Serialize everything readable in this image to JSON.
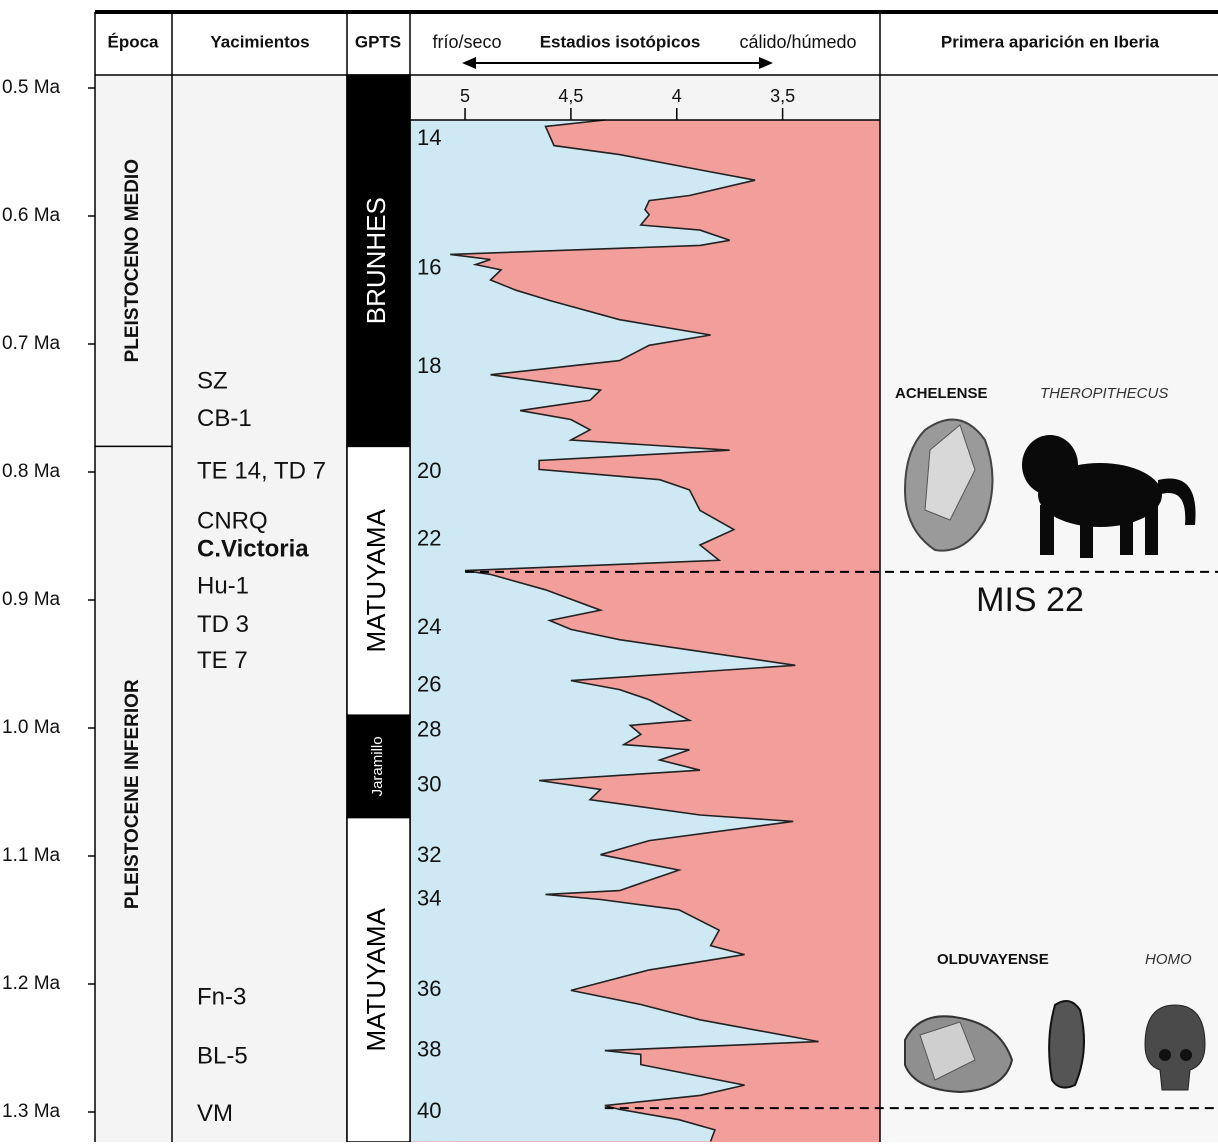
{
  "header": {
    "epoch": "Época",
    "sites": "Yacimientos",
    "gpts": "GPTS",
    "cold": "frío/seco",
    "isotopes": "Estadios isotópicos",
    "warm": "cálido/húmedo",
    "first": "Primera aparición en Iberia"
  },
  "age_axis": {
    "lim": [
      0.5,
      1.3
    ],
    "ticks": [
      {
        "value": 0.5,
        "label": "0.5 Ma"
      },
      {
        "value": 0.6,
        "label": "0.6 Ma"
      },
      {
        "value": 0.7,
        "label": "0.7 Ma"
      },
      {
        "value": 0.8,
        "label": "0.8 Ma"
      },
      {
        "value": 0.9,
        "label": "0.9 Ma"
      },
      {
        "value": 1.0,
        "label": "1.0 Ma"
      },
      {
        "value": 1.1,
        "label": "1.1 Ma"
      },
      {
        "value": 1.2,
        "label": "1.2 Ma"
      },
      {
        "value": 1.3,
        "label": "1.3 Ma"
      }
    ]
  },
  "epochs": [
    {
      "name": "PLEISTOCENO MEDIO",
      "base": 0.78
    },
    {
      "name": "PLEISTOCENE INFERIOR",
      "base": null
    }
  ],
  "gpts": [
    {
      "name": "BRUNHES",
      "base": 0.78,
      "normal": true
    },
    {
      "name": "MATUYAMA",
      "base": 0.99,
      "normal": false
    },
    {
      "name": "Jaramillo",
      "base": 1.07,
      "normal": true
    },
    {
      "name": "MATUYAMA",
      "base": null,
      "normal": false
    }
  ],
  "sites": [
    {
      "name": "SZ",
      "age": 0.73
    },
    {
      "name": "CB-1",
      "age": 0.759
    },
    {
      "name": "TE 14, TD 7",
      "age": 0.8
    },
    {
      "name": "CNRQ",
      "age": 0.839
    },
    {
      "name": "C.Victoria",
      "age": 0.861,
      "bold": true
    },
    {
      "name": "Hu-1",
      "age": 0.89
    },
    {
      "name": "TD 3",
      "age": 0.92
    },
    {
      "name": "TE 7",
      "age": 0.948
    },
    {
      "name": "Fn-3",
      "age": 1.211
    },
    {
      "name": "BL-5",
      "age": 1.257
    },
    {
      "name": "VM",
      "age": 1.302
    }
  ],
  "chart_data": {
    "type": "line",
    "x": [
      0.525,
      0.53,
      0.545,
      0.552,
      0.564,
      0.572,
      0.584,
      0.588,
      0.595,
      0.599,
      0.607,
      0.611,
      0.619,
      0.623,
      0.63,
      0.634,
      0.638,
      0.642,
      0.65,
      0.658,
      0.666,
      0.681,
      0.693,
      0.701,
      0.713,
      0.724,
      0.736,
      0.744,
      0.752,
      0.759,
      0.767,
      0.775,
      0.783,
      0.791,
      0.798,
      0.806,
      0.814,
      0.83,
      0.845,
      0.857,
      0.869,
      0.877,
      0.88,
      0.892,
      0.908,
      0.916,
      0.923,
      0.931,
      0.939,
      0.951,
      0.963,
      0.97,
      0.978,
      0.994,
      0.998,
      1.005,
      1.013,
      1.017,
      1.025,
      1.033,
      1.041,
      1.048,
      1.056,
      1.068,
      1.073,
      1.088,
      1.099,
      1.111,
      1.119,
      1.127,
      1.13,
      1.134,
      1.142,
      1.158,
      1.17,
      1.177,
      1.189,
      1.205,
      1.216,
      1.228,
      1.245,
      1.252,
      1.255,
      1.263,
      1.279,
      1.287,
      1.295,
      1.298,
      1.306,
      1.314,
      1.323
    ],
    "values": [
      4.34,
      4.62,
      4.58,
      4.27,
      3.89,
      3.63,
      3.94,
      4.13,
      4.15,
      4.13,
      4.17,
      3.89,
      3.75,
      3.89,
      5.07,
      4.88,
      4.95,
      4.83,
      4.88,
      4.76,
      4.6,
      4.27,
      3.84,
      4.13,
      4.27,
      4.88,
      4.36,
      4.41,
      4.74,
      4.5,
      4.41,
      4.5,
      3.75,
      4.65,
      4.65,
      4.08,
      3.94,
      3.89,
      3.73,
      3.89,
      3.8,
      5.0,
      4.88,
      4.62,
      4.36,
      4.6,
      4.5,
      4.27,
      3.94,
      3.44,
      4.5,
      4.27,
      4.13,
      3.94,
      4.22,
      4.17,
      4.25,
      3.94,
      4.08,
      3.89,
      4.65,
      4.36,
      4.41,
      3.89,
      3.45,
      4.13,
      4.36,
      3.99,
      4.13,
      4.27,
      4.62,
      4.36,
      3.99,
      3.8,
      3.84,
      3.68,
      4.13,
      4.5,
      4.17,
      3.89,
      3.33,
      4.34,
      4.17,
      4.17,
      3.68,
      3.89,
      4.34,
      4.27,
      3.99,
      3.82,
      3.84
    ],
    "xlim": [
      5.26,
      3.04
    ],
    "xticks": [
      5,
      {
        "value": 4.5,
        "label": "4,5"
      },
      4,
      {
        "value": 3.5,
        "label": "3,5"
      }
    ],
    "color_cold": "#cfe9f4",
    "color_warm": "#f29e9a",
    "stages": [
      {
        "value": 14,
        "age": 0.54
      },
      {
        "value": 16,
        "age": 0.641
      },
      {
        "value": 18,
        "age": 0.718
      },
      {
        "value": 20,
        "age": 0.8
      },
      {
        "value": 22,
        "age": 0.853
      },
      {
        "value": 24,
        "age": 0.922
      },
      {
        "value": 26,
        "age": 0.967
      },
      {
        "value": 28,
        "age": 1.002
      },
      {
        "value": 30,
        "age": 1.045
      },
      {
        "value": 32,
        "age": 1.1
      },
      {
        "value": 34,
        "age": 1.134
      },
      {
        "value": 36,
        "age": 1.205
      },
      {
        "value": 38,
        "age": 1.252
      },
      {
        "value": 40,
        "age": 1.3
      }
    ]
  },
  "first_appearance": {
    "events": [
      {
        "age": 0.878,
        "label": "MIS 22",
        "items": [
          "ACHELENSE",
          "THEROPITHECUS"
        ]
      },
      {
        "age": 1.297,
        "items": [
          "OLDUVAYENSE",
          "HOMO"
        ]
      }
    ]
  }
}
